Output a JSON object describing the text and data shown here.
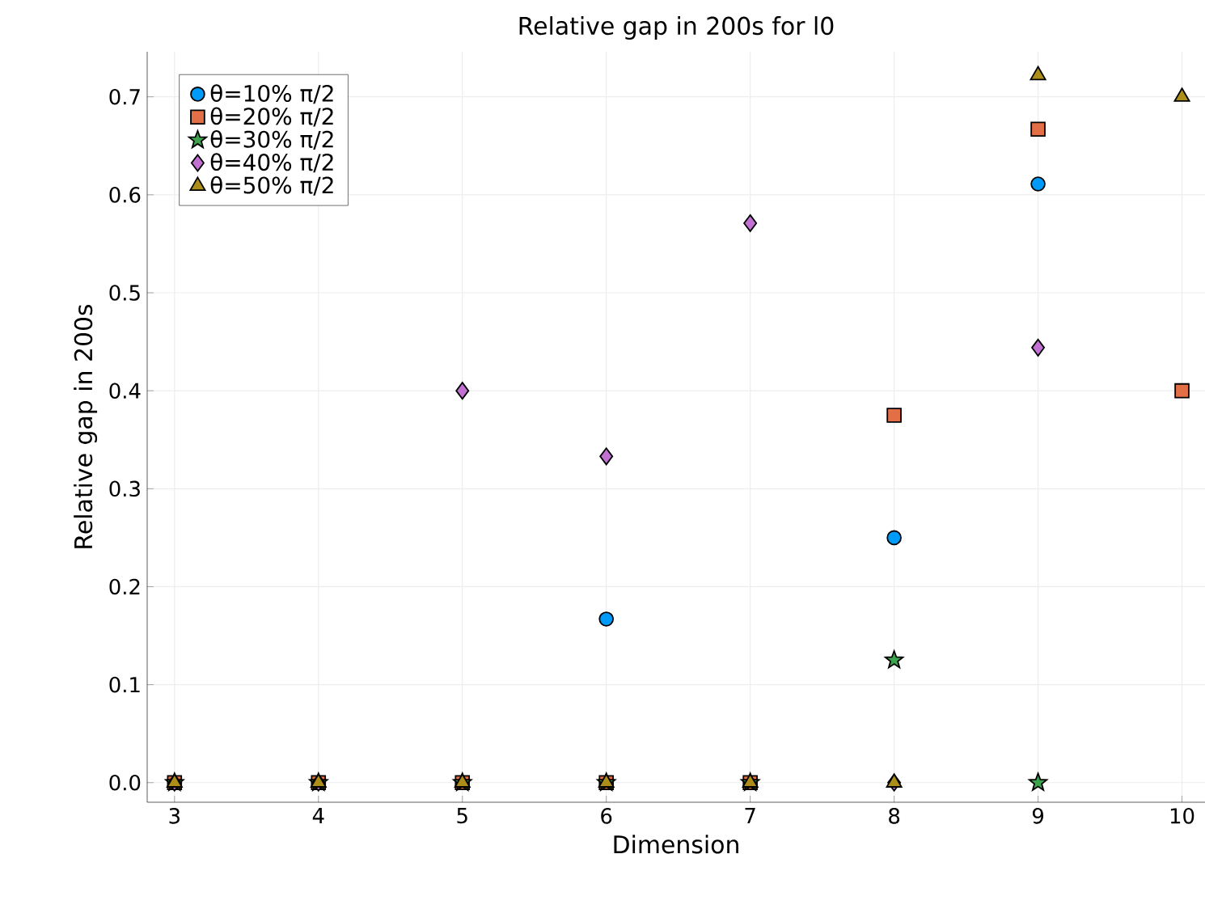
{
  "chart_data": {
    "type": "scatter",
    "title": "Relative gap in 200s for l0",
    "xlabel": "Dimension",
    "ylabel": "Relative gap in 200s",
    "x": [
      3,
      4,
      5,
      6,
      7,
      8,
      9,
      10
    ],
    "series": [
      {
        "name": "θ=10% π/2",
        "color": "#009af9",
        "marker": "circle",
        "values": [
          null,
          null,
          null,
          0.167,
          null,
          0.25,
          0.611,
          null
        ]
      },
      {
        "name": "θ=20% π/2",
        "color": "#e26f46",
        "marker": "square",
        "values": [
          0,
          0,
          0,
          0,
          0,
          0.375,
          0.667,
          0.4
        ]
      },
      {
        "name": "θ=30% π/2",
        "color": "#3da44d",
        "marker": "star",
        "values": [
          0,
          0,
          0,
          0,
          0,
          0.125,
          0,
          null
        ]
      },
      {
        "name": "θ=40% π/2",
        "color": "#c271d2",
        "marker": "diamond",
        "values": [
          0,
          0,
          0.4,
          0.333,
          0.571,
          0,
          0.444,
          null
        ]
      },
      {
        "name": "θ=50% π/2",
        "color": "#ac8e18",
        "marker": "triangle",
        "values": [
          0,
          0,
          0,
          0,
          0,
          0,
          0.722,
          0.7
        ]
      }
    ],
    "xlim": [
      2.81,
      10.16
    ],
    "ylim": [
      -0.02,
      0.746
    ],
    "xticks": [
      3,
      4,
      5,
      6,
      7,
      8,
      9,
      10
    ],
    "yticks": [
      {
        "value": 0,
        "label": "0.0"
      },
      0.1,
      0.2,
      0.3,
      0.4,
      0.5,
      0.6,
      0.7
    ],
    "grid": true,
    "legend": "top left"
  }
}
